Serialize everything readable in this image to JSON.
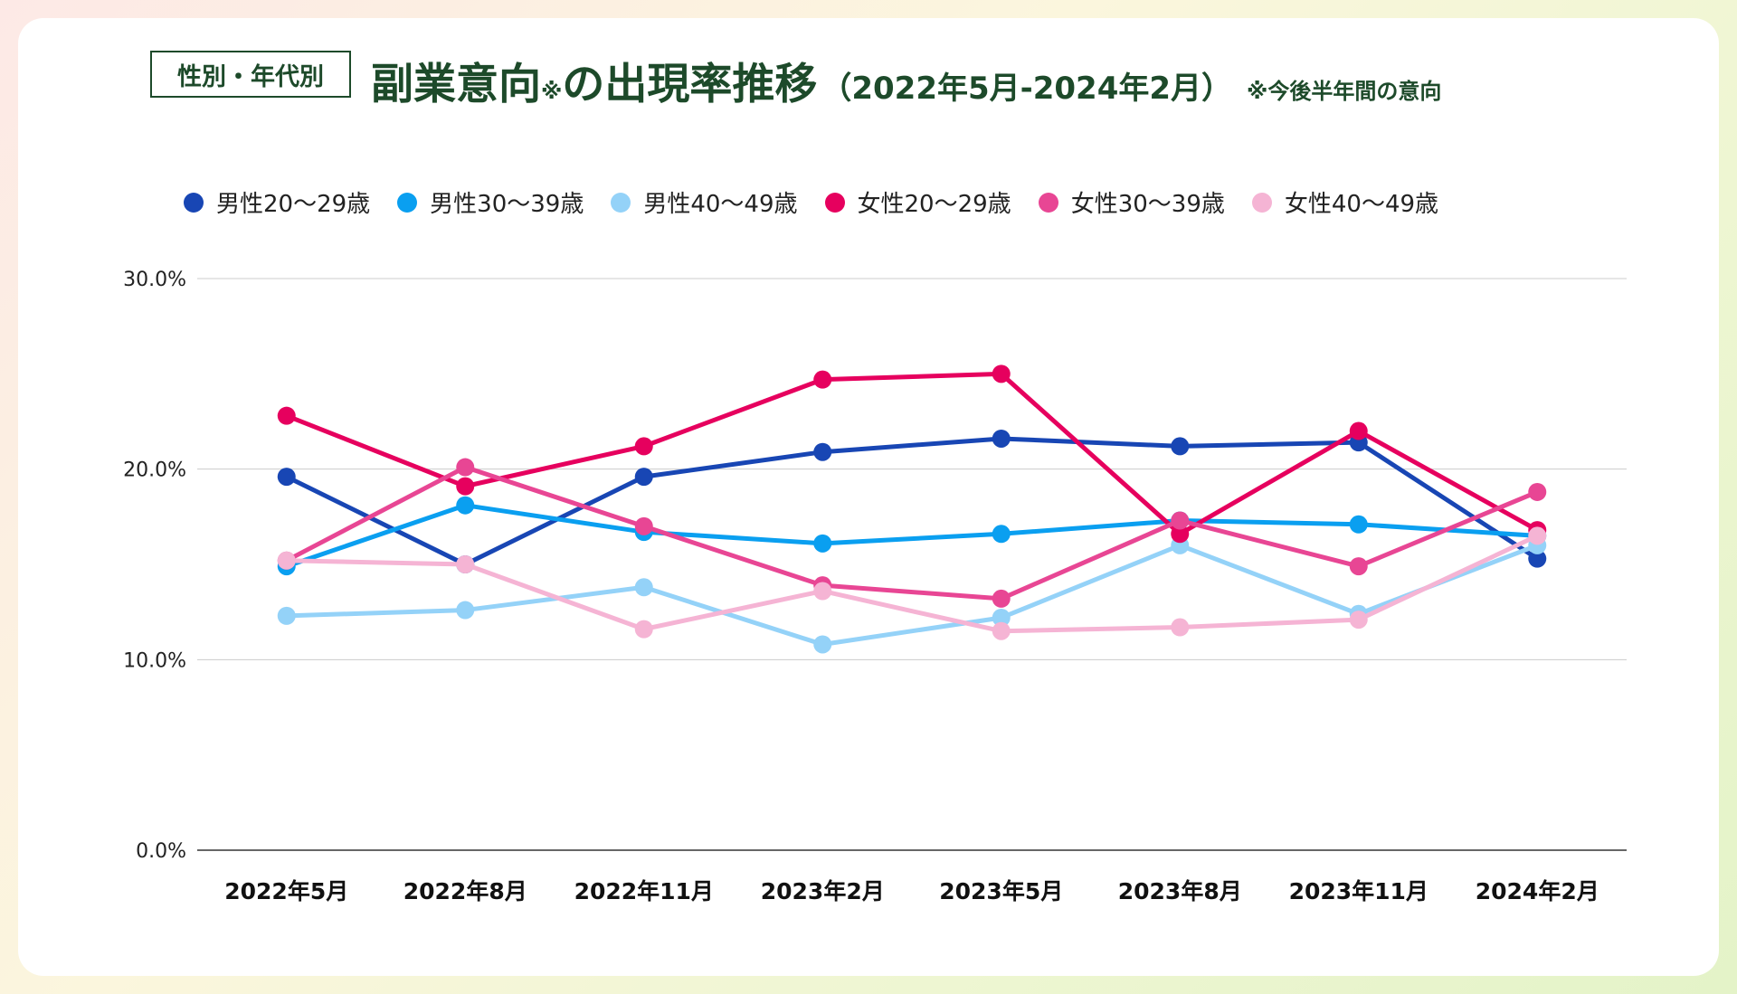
{
  "header": {
    "tag": "性別・年代別",
    "title_main": "副業意向",
    "title_mark": "※",
    "title_rest": "の出現率推移",
    "title_period": "（2022年5月-2024年2月）",
    "title_note": "※今後半年間の意向"
  },
  "chart_data": {
    "type": "line",
    "title": "性別・年代別 副業意向※の出現率推移（2022年5月-2024年2月）",
    "xlabel": "",
    "ylabel": "",
    "ylim": [
      0,
      30
    ],
    "yticks": [
      0,
      10,
      20,
      30
    ],
    "ytick_labels": [
      "0.0%",
      "10.0%",
      "20.0%",
      "30.0%"
    ],
    "grid": true,
    "legend_position": "top",
    "categories": [
      "2022年5月",
      "2022年8月",
      "2022年11月",
      "2023年2月",
      "2023年5月",
      "2023年8月",
      "2023年11月",
      "2024年2月"
    ],
    "series": [
      {
        "name": "男性20〜29歳",
        "color": "#1846b4",
        "values": [
          19.6,
          15.0,
          19.6,
          20.9,
          21.6,
          21.2,
          21.4,
          15.3
        ]
      },
      {
        "name": "男性30〜39歳",
        "color": "#0a9ff0",
        "values": [
          14.9,
          18.1,
          16.7,
          16.1,
          16.6,
          17.3,
          17.1,
          16.5
        ]
      },
      {
        "name": "男性40〜49歳",
        "color": "#94d2f8",
        "values": [
          12.3,
          12.6,
          13.8,
          10.8,
          12.2,
          16.0,
          12.4,
          16.0
        ]
      },
      {
        "name": "女性20〜29歳",
        "color": "#e6005e",
        "values": [
          22.8,
          19.1,
          21.2,
          24.7,
          25.0,
          16.6,
          22.0,
          16.8
        ]
      },
      {
        "name": "女性30〜39歳",
        "color": "#e84694",
        "values": [
          15.2,
          20.1,
          17.0,
          13.9,
          13.2,
          17.3,
          14.9,
          18.8
        ]
      },
      {
        "name": "女性40〜49歳",
        "color": "#f5b4d4",
        "values": [
          15.2,
          15.0,
          11.6,
          13.6,
          11.5,
          11.7,
          12.1,
          16.5
        ]
      }
    ]
  }
}
